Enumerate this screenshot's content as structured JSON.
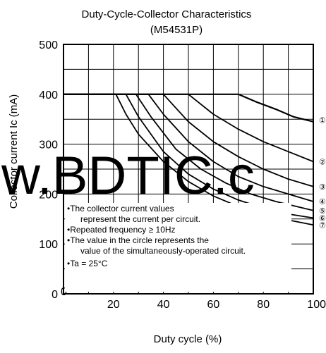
{
  "chart_data": {
    "type": "line",
    "title": "Duty-Cycle-Collector Characteristics",
    "subtitle": "(M54531P)",
    "xlabel": "Duty cycle  (%)",
    "ylabel": "Collector current Ic (mA)",
    "xlim": [
      0,
      100
    ],
    "ylim": [
      0,
      500
    ],
    "x_ticks": [
      "0",
      "20",
      "40",
      "60",
      "80",
      "100"
    ],
    "y_ticks": [
      "0",
      "100",
      "200",
      "300",
      "400",
      "500"
    ],
    "grid": true,
    "series": [
      {
        "name": "①",
        "x": [
          0,
          70,
          77,
          85,
          92,
          100
        ],
        "y": [
          400,
          400,
          385,
          370,
          355,
          345
        ]
      },
      {
        "name": "②",
        "x": [
          0,
          50,
          60,
          70,
          80,
          90,
          100
        ],
        "y": [
          400,
          400,
          360,
          330,
          305,
          285,
          265
        ]
      },
      {
        "name": "③",
        "x": [
          0,
          40,
          50,
          60,
          70,
          80,
          90,
          100
        ],
        "y": [
          400,
          400,
          345,
          305,
          275,
          250,
          230,
          215
        ]
      },
      {
        "name": "④",
        "x": [
          0,
          34,
          40,
          50,
          60,
          70,
          80,
          90,
          100
        ],
        "y": [
          400,
          400,
          360,
          305,
          265,
          235,
          215,
          200,
          185
        ]
      },
      {
        "name": "⑤",
        "x": [
          0,
          29,
          35,
          45,
          55,
          65,
          75,
          85,
          100
        ],
        "y": [
          400,
          400,
          355,
          290,
          250,
          222,
          200,
          185,
          167
        ]
      },
      {
        "name": "⑥",
        "x": [
          0,
          25,
          30,
          40,
          50,
          60,
          70,
          80,
          90,
          100
        ],
        "y": [
          400,
          400,
          355,
          285,
          240,
          210,
          188,
          172,
          160,
          152
        ]
      },
      {
        "name": "⑦",
        "x": [
          0,
          21,
          25,
          30,
          40,
          50,
          60,
          70,
          80,
          90,
          100
        ],
        "y": [
          400,
          400,
          360,
          320,
          265,
          225,
          196,
          175,
          160,
          148,
          138
        ]
      }
    ],
    "annotations": [
      "•The collector current values",
      "represent the current per circuit.",
      "•Repeated frequency ≥ 10Hz",
      "•The value in the circle represents the",
      "value of the simultaneously-operated circuit.",
      "•Ta = 25°C"
    ]
  },
  "watermark": "w.BDTIC.c",
  "colors": {
    "line": "#000000",
    "watermark": "#1515e0",
    "background": "#ffffff"
  }
}
